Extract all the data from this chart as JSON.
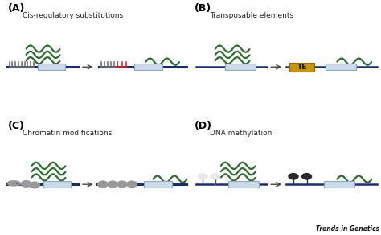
{
  "panel_A_label": "(A)",
  "panel_B_label": "(B)",
  "panel_C_label": "(C)",
  "panel_D_label": "(D)",
  "title_A": "Cis-regulatory substitutions",
  "title_B": "Transposable elements",
  "title_C": "Chromatin modifications",
  "title_D": "DNA methylation",
  "brand": "Trends in Genetics",
  "bg_color": "#ffffff",
  "box_color": "#ccd9e8",
  "box_edge_color": "#8aaac0",
  "dna_line_color": "#1a2e6e",
  "arrow_color": "#444444",
  "wave_color": "#2d6b2d",
  "comb_color": "#555555",
  "comb_red_color": "#cc2222",
  "te_box_color": "#c8960a",
  "te_text_color": "#000000",
  "nucleosome_color": "#999999",
  "nucleosome_edge": "#666666",
  "methyl_empty_color": "#e8e8e8",
  "methyl_empty_edge": "#aaaaaa",
  "methyl_full_color": "#2a2a2a",
  "methyl_full_edge": "#111111",
  "label_fontsize": 9,
  "title_fontsize": 6.5,
  "brand_fontsize": 5.5
}
